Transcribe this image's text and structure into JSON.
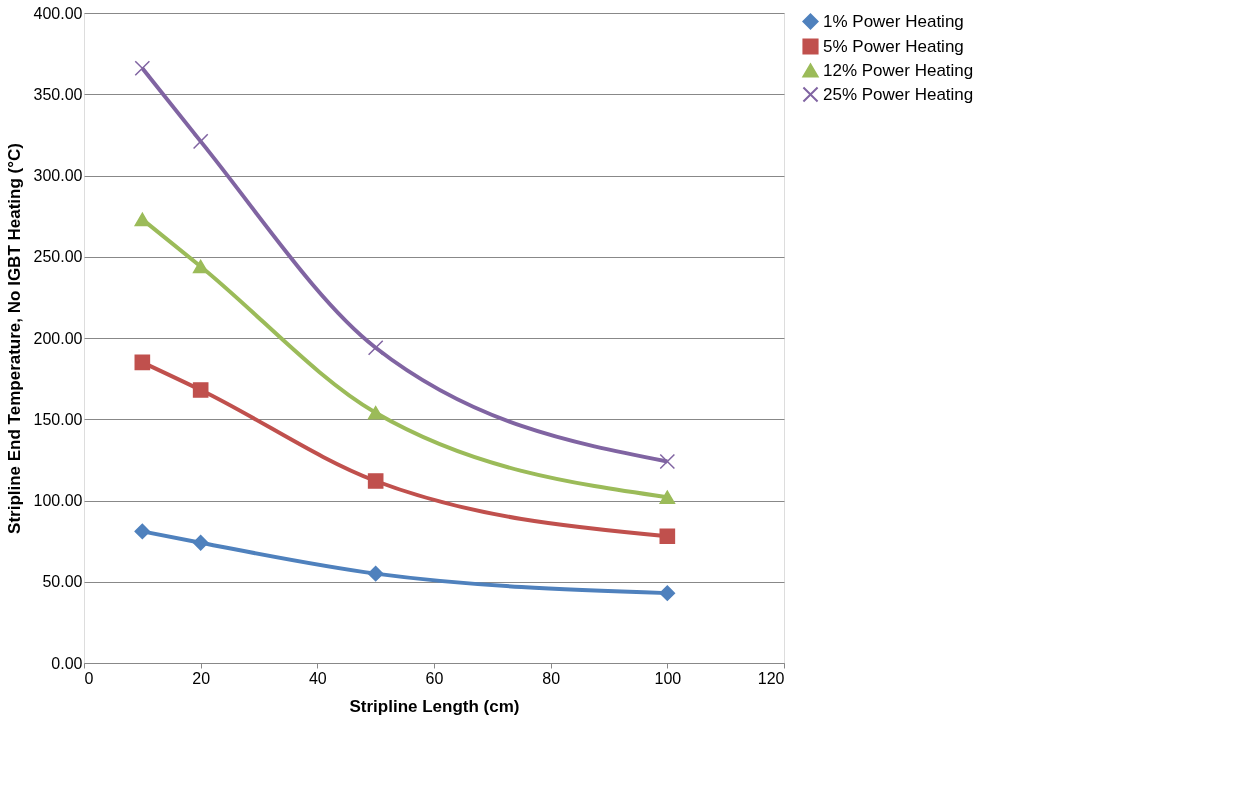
{
  "chart_data": {
    "type": "line",
    "xlabel": "Stripline Length (cm)",
    "ylabel": "Stripline End Temperature, No IGBT Heating (°C)",
    "x": [
      10,
      20,
      50,
      100
    ],
    "series": [
      {
        "name": "1% Power Heating",
        "color": "#4f81bd",
        "marker": "diamond",
        "values": [
          81,
          74,
          55,
          43
        ]
      },
      {
        "name": "5% Power Heating",
        "color": "#c0504d",
        "marker": "square",
        "values": [
          185,
          168,
          112,
          78
        ]
      },
      {
        "name": "12% Power Heating",
        "color": "#9bbb59",
        "marker": "triangle",
        "values": [
          273,
          244,
          154,
          102
        ]
      },
      {
        "name": "25% Power Heating",
        "color": "#8064a2",
        "marker": "cross",
        "values": [
          366,
          321,
          194,
          124
        ]
      }
    ],
    "xlim": [
      0,
      120
    ],
    "xticks": [
      0,
      20,
      40,
      60,
      80,
      100,
      120
    ],
    "ylim": [
      0,
      400
    ],
    "yticks": [
      {
        "value": 0,
        "label": "0.00"
      },
      {
        "value": 50,
        "label": "50.00"
      },
      {
        "value": 100,
        "label": "100.00"
      },
      {
        "value": 150,
        "label": "150.00"
      },
      {
        "value": 200,
        "label": "200.00"
      },
      {
        "value": 250,
        "label": "250.00"
      },
      {
        "value": 300,
        "label": "300.00"
      },
      {
        "value": 350,
        "label": "350.00"
      },
      {
        "value": 400,
        "label": "400.00"
      }
    ],
    "grid": "y",
    "legend": "right",
    "line_style": "solid"
  }
}
